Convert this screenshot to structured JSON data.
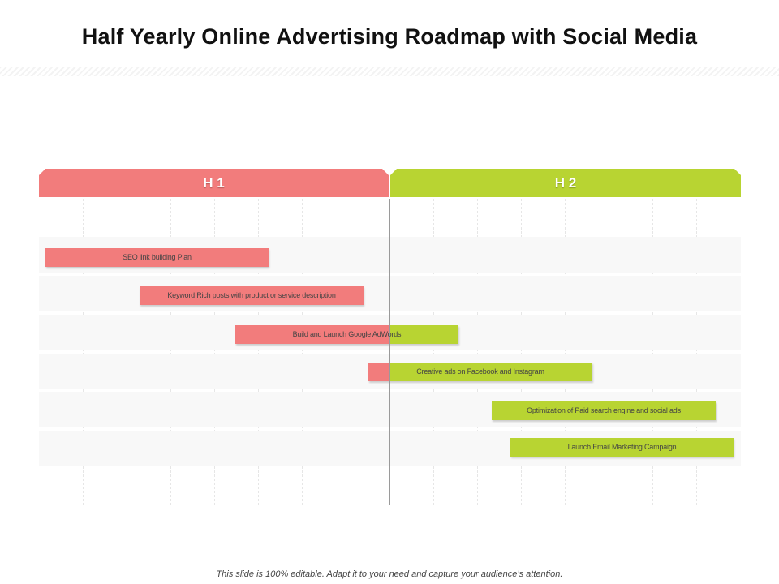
{
  "title": "Half Yearly Online Advertising Roadmap with Social Media",
  "headers": {
    "h1": "H 1",
    "h2": "H 2"
  },
  "colors": {
    "h1": "#f27c7c",
    "h2": "#b8d432"
  },
  "tasks": [
    {
      "label": "SEO link building Plan"
    },
    {
      "label": "Keyword Rich posts with product or service description"
    },
    {
      "label": "Build and Launch Google AdWords"
    },
    {
      "label": "Creative ads on Facebook and Instagram"
    },
    {
      "label": "Optimization of Paid search engine and social ads"
    },
    {
      "label": "Launch Email Marketing Campaign"
    }
  ],
  "footer": "This slide is 100% editable. Adapt it to your need and capture your audience’s attention."
}
